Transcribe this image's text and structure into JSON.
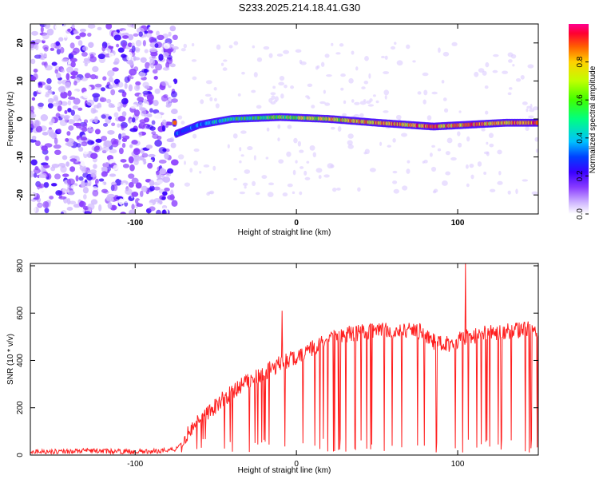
{
  "title": "S233.2025.214.18.41.G30",
  "chart_data": [
    {
      "type": "heatmap",
      "xlabel": "Height of straight line (km)",
      "ylabel": "Frequency (Hz)",
      "xlim": [
        -165,
        150
      ],
      "ylim": [
        -25,
        25
      ],
      "xticks": [
        -100,
        0,
        100
      ],
      "yticks": [
        20,
        10,
        0,
        -10,
        -20
      ],
      "colorbar": {
        "label": "Normalized spectral amplitude",
        "range": [
          0.0,
          1.0
        ],
        "ticks": [
          "0.0",
          "0.2",
          "0.4",
          "0.6",
          "0.8"
        ],
        "colormap": [
          "#ffffff",
          "#cfb6ff",
          "#8a3cff",
          "#3a00ff",
          "#0040ff",
          "#00c0ff",
          "#00ff80",
          "#40ff00",
          "#c0ff00",
          "#ffd000",
          "#ff6000",
          "#ff0030",
          "#ff0090"
        ]
      },
      "description_points": [
        {
          "x": -165,
          "x_end": -75,
          "band": "noise",
          "amplitude": 0.15
        },
        {
          "x": -75,
          "y": -4,
          "amplitude": 0.35
        },
        {
          "x": -60,
          "y": -1.5,
          "amplitude": 0.4
        },
        {
          "x": -40,
          "y": 0,
          "amplitude": 0.5
        },
        {
          "x": -10,
          "y": 0.5,
          "amplitude": 0.6
        },
        {
          "x": 20,
          "y": 0,
          "amplitude": 0.7
        },
        {
          "x": 50,
          "y": -1,
          "amplitude": 0.8
        },
        {
          "x": 85,
          "y": -2,
          "amplitude": 0.8
        },
        {
          "x": 130,
          "y": -1,
          "amplitude": 0.8
        }
      ]
    },
    {
      "type": "line",
      "xlabel": "Height of straight line (km)",
      "ylabel": "SNR (10 * v/v)",
      "xlim": [
        -165,
        150
      ],
      "ylim": [
        0,
        810
      ],
      "xticks": [
        -100,
        0,
        100
      ],
      "yticks": [
        0,
        200,
        400,
        600,
        800
      ],
      "color": "#ff2020",
      "x": [
        -165,
        -150,
        -130,
        -110,
        -90,
        -75,
        -65,
        -55,
        -45,
        -35,
        -25,
        -15,
        -5,
        5,
        15,
        25,
        35,
        45,
        55,
        65,
        75,
        85,
        95,
        105,
        115,
        125,
        140,
        150
      ],
      "y": [
        15,
        15,
        18,
        15,
        15,
        25,
        110,
        180,
        240,
        290,
        330,
        370,
        400,
        430,
        470,
        500,
        515,
        520,
        525,
        520,
        530,
        480,
        470,
        500,
        510,
        520,
        530,
        530
      ],
      "spikes": [
        {
          "x": -9,
          "y": 610
        },
        {
          "x": 105,
          "y": 810
        }
      ]
    }
  ]
}
